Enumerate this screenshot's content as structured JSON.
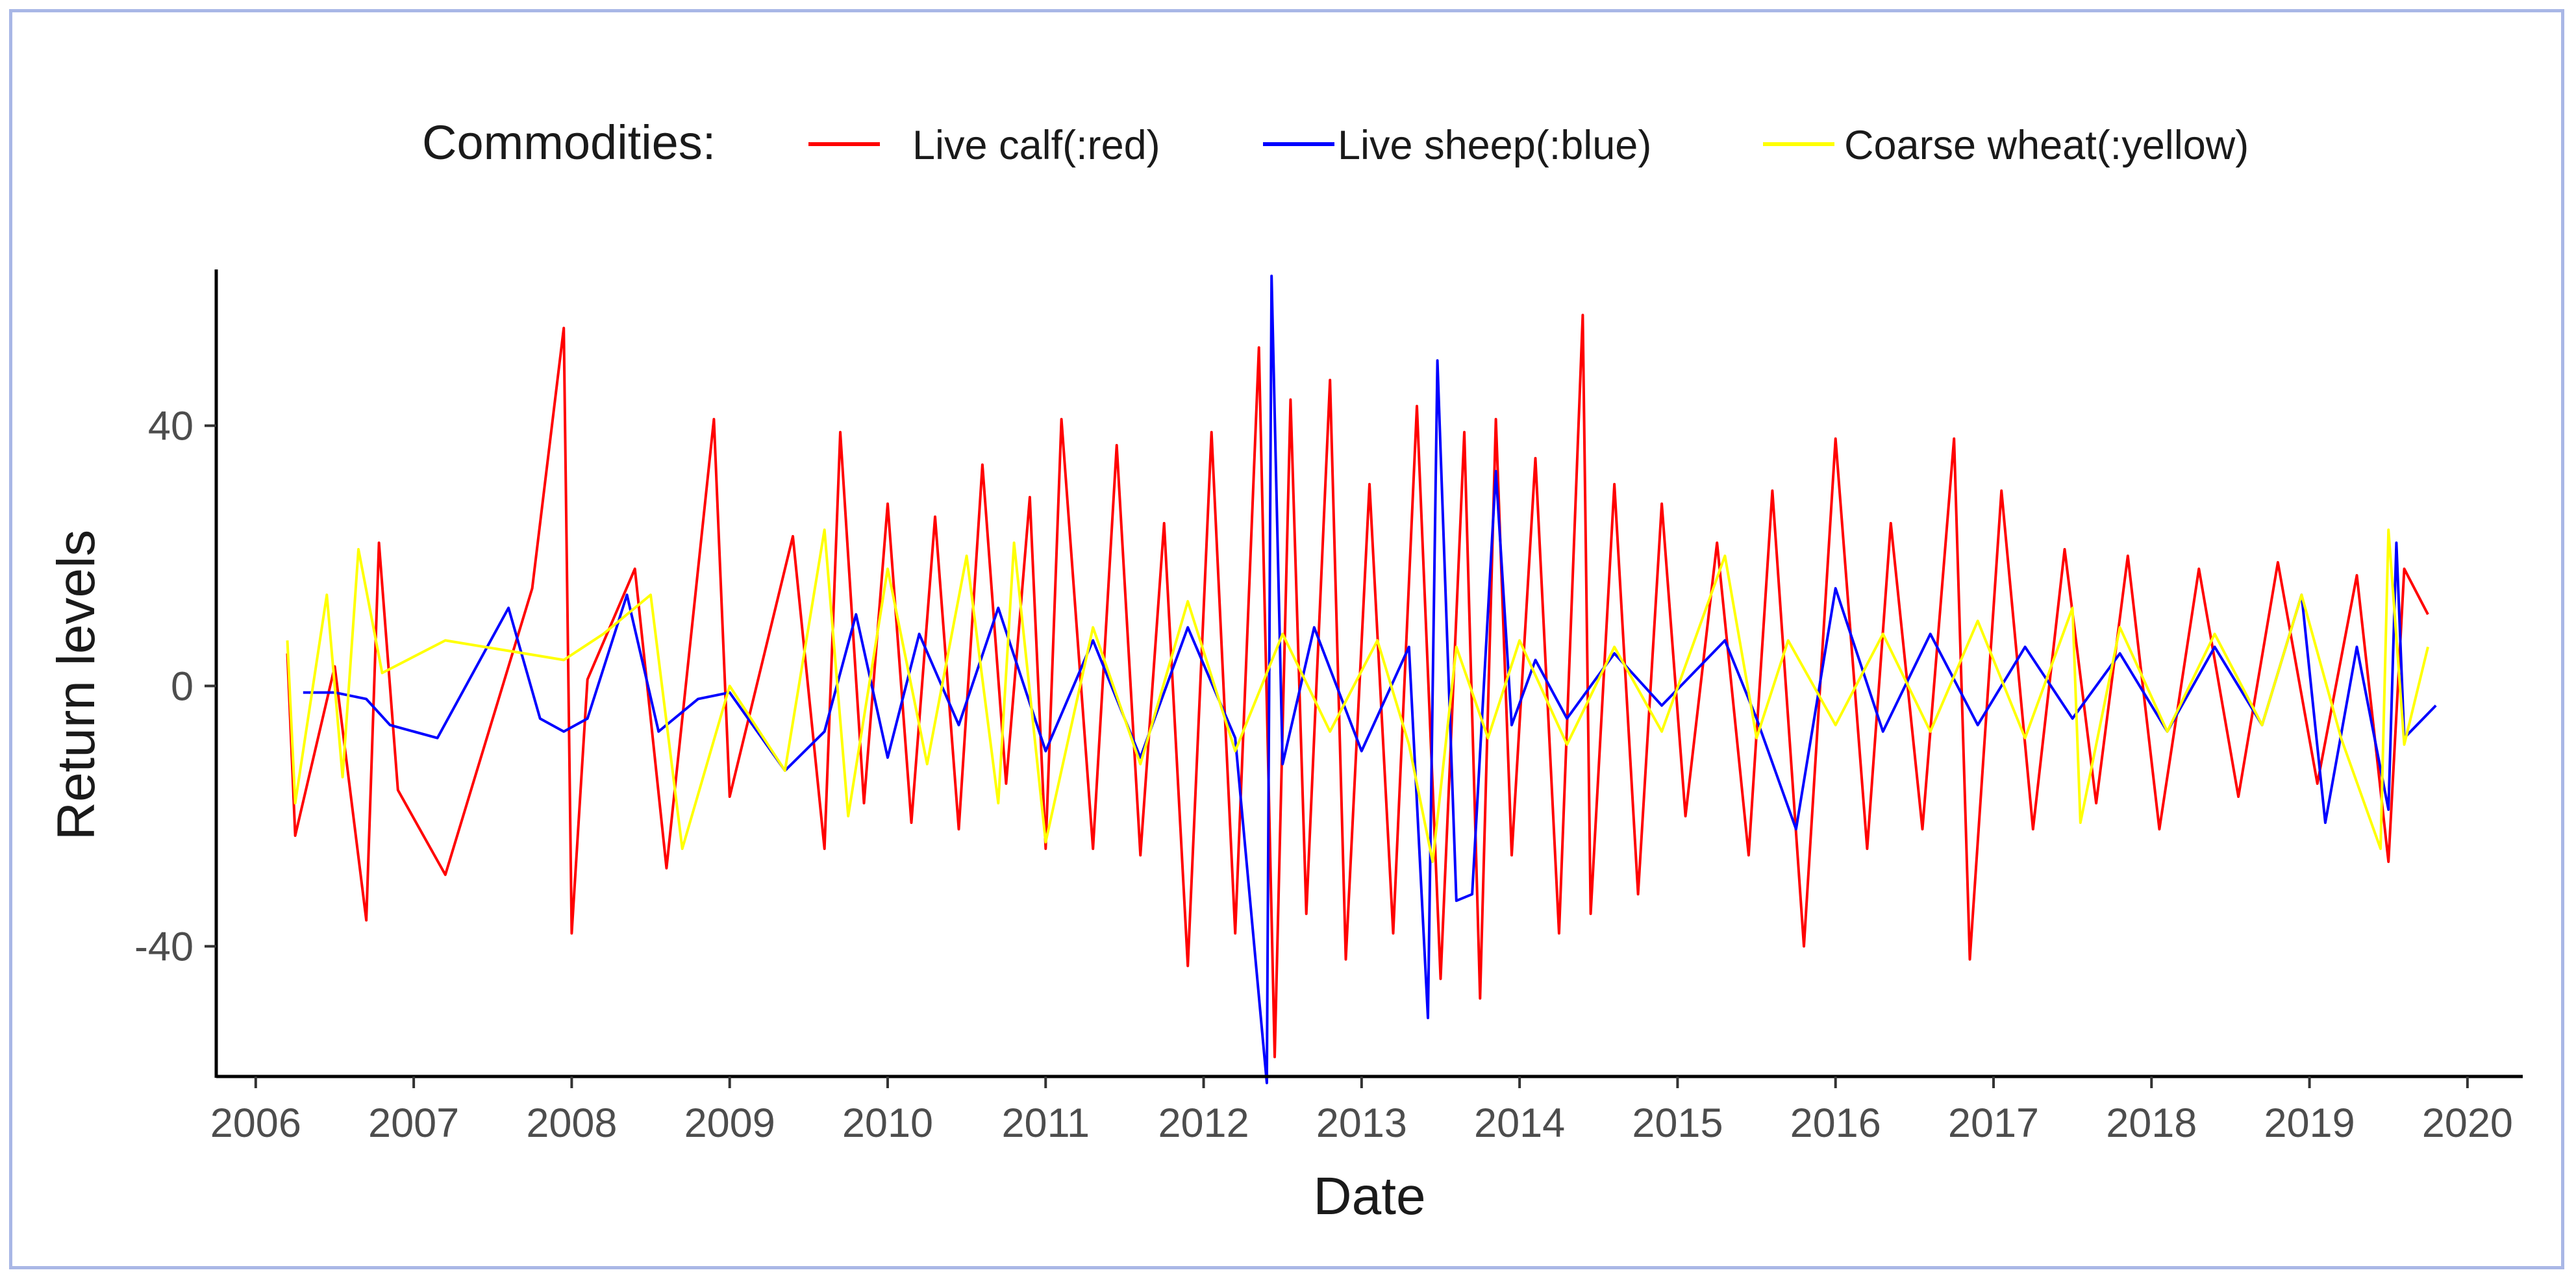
{
  "chart_data": {
    "type": "line",
    "title": "",
    "xlabel": "Date",
    "ylabel": "Return levels",
    "xlim": [
      2005.75,
      2020.35
    ],
    "ylim": [
      -60,
      64
    ],
    "x_ticks": [
      2006,
      2007,
      2008,
      2009,
      2010,
      2011,
      2012,
      2013,
      2014,
      2015,
      2016,
      2017,
      2018,
      2019,
      2020
    ],
    "y_ticks": [
      -40,
      0,
      40
    ],
    "legend": {
      "title": "Commodities:",
      "position": "top",
      "entries": [
        "Live calf(:red)",
        "Live sheep(:blue)",
        "Coarse wheat(:yellow)"
      ]
    },
    "series": [
      {
        "name": "Live calf(:red)",
        "color": "#ff0000",
        "x": [
          2006.2,
          2006.25,
          2006.5,
          2006.7,
          2006.78,
          2006.9,
          2007.2,
          2007.75,
          2007.95,
          2008.0,
          2008.1,
          2008.4,
          2008.6,
          2008.9,
          2009.0,
          2009.4,
          2009.6,
          2009.7,
          2009.85,
          2010.0,
          2010.15,
          2010.3,
          2010.45,
          2010.6,
          2010.75,
          2010.9,
          2011.0,
          2011.1,
          2011.3,
          2011.45,
          2011.6,
          2011.75,
          2011.9,
          2012.05,
          2012.2,
          2012.35,
          2012.45,
          2012.55,
          2012.65,
          2012.8,
          2012.9,
          2013.05,
          2013.2,
          2013.35,
          2013.5,
          2013.65,
          2013.75,
          2013.85,
          2013.95,
          2014.1,
          2014.25,
          2014.4,
          2014.45,
          2014.6,
          2014.75,
          2014.9,
          2015.05,
          2015.25,
          2015.45,
          2015.6,
          2015.8,
          2016.0,
          2016.2,
          2016.35,
          2016.55,
          2016.75,
          2016.85,
          2017.05,
          2017.25,
          2017.45,
          2017.65,
          2017.85,
          2018.05,
          2018.3,
          2018.55,
          2018.8,
          2019.05,
          2019.3,
          2019.5,
          2019.6,
          2019.75
        ],
        "values": [
          5,
          -23,
          3,
          -36,
          22,
          -16,
          -29,
          15,
          55,
          -38,
          1,
          18,
          -28,
          41,
          -17,
          23,
          -25,
          39,
          -18,
          28,
          -21,
          26,
          -22,
          34,
          -15,
          29,
          -25,
          41,
          -25,
          37,
          -26,
          25,
          -43,
          39,
          -38,
          52,
          -57,
          44,
          -35,
          47,
          -42,
          31,
          -38,
          43,
          -45,
          39,
          -48,
          41,
          -26,
          35,
          -38,
          57,
          -35,
          31,
          -32,
          28,
          -20,
          22,
          -26,
          30,
          -40,
          38,
          -25,
          25,
          -22,
          38,
          -42,
          30,
          -22,
          21,
          -18,
          20,
          -22,
          18,
          -17,
          19,
          -15,
          17,
          -27,
          18,
          11
        ]
      },
      {
        "name": "Live sheep(:blue)",
        "color": "#0000ff",
        "x": [
          2006.3,
          2006.5,
          2006.7,
          2006.85,
          2007.15,
          2007.6,
          2007.8,
          2007.95,
          2008.1,
          2008.35,
          2008.55,
          2008.8,
          2009.0,
          2009.35,
          2009.6,
          2009.8,
          2010.0,
          2010.2,
          2010.45,
          2010.7,
          2011.0,
          2011.3,
          2011.6,
          2011.9,
          2012.2,
          2012.4,
          2012.43,
          2012.5,
          2012.7,
          2013.0,
          2013.3,
          2013.42,
          2013.48,
          2013.6,
          2013.7,
          2013.85,
          2013.95,
          2014.1,
          2014.3,
          2014.6,
          2014.9,
          2015.3,
          2015.5,
          2015.75,
          2016.0,
          2016.3,
          2016.6,
          2016.9,
          2017.2,
          2017.5,
          2017.8,
          2018.1,
          2018.4,
          2018.7,
          2018.95,
          2019.1,
          2019.3,
          2019.5,
          2019.55,
          2019.6,
          2019.8
        ],
        "values": [
          -1,
          -1,
          -2,
          -6,
          -8,
          12,
          -5,
          -7,
          -5,
          14,
          -7,
          -2,
          -1,
          -13,
          -7,
          11,
          -11,
          8,
          -6,
          12,
          -10,
          7,
          -11,
          9,
          -8,
          -61,
          63,
          -12,
          9,
          -10,
          6,
          -51,
          50,
          -33,
          -32,
          33,
          -6,
          4,
          -5,
          5,
          -3,
          7,
          -5,
          -22,
          15,
          -7,
          8,
          -6,
          6,
          -5,
          5,
          -7,
          6,
          -6,
          14,
          -21,
          6,
          -19,
          22,
          -8,
          -3
        ]
      },
      {
        "name": "Coarse wheat(:yellow)",
        "color": "#ffff00",
        "x": [
          2006.2,
          2006.25,
          2006.45,
          2006.55,
          2006.65,
          2006.8,
          2007.2,
          2007.7,
          2007.95,
          2008.2,
          2008.5,
          2008.7,
          2009.0,
          2009.35,
          2009.6,
          2009.75,
          2010.0,
          2010.25,
          2010.5,
          2010.7,
          2010.8,
          2011.0,
          2011.3,
          2011.6,
          2011.9,
          2012.2,
          2012.5,
          2012.8,
          2013.1,
          2013.3,
          2013.45,
          2013.6,
          2013.8,
          2014.0,
          2014.3,
          2014.6,
          2014.9,
          2015.3,
          2015.5,
          2015.7,
          2016.0,
          2016.3,
          2016.6,
          2016.9,
          2017.2,
          2017.5,
          2017.55,
          2017.8,
          2018.1,
          2018.4,
          2018.7,
          2018.95,
          2019.2,
          2019.45,
          2019.5,
          2019.6,
          2019.75
        ],
        "values": [
          7,
          -18,
          14,
          -14,
          21,
          2,
          7,
          5,
          4,
          8,
          14,
          -25,
          0,
          -13,
          24,
          -20,
          18,
          -12,
          20,
          -18,
          22,
          -24,
          9,
          -12,
          13,
          -10,
          8,
          -7,
          7,
          -9,
          -27,
          6,
          -8,
          7,
          -9,
          6,
          -7,
          20,
          -8,
          7,
          -6,
          8,
          -7,
          10,
          -8,
          12,
          -21,
          9,
          -7,
          8,
          -6,
          14,
          -8,
          -25,
          24,
          -9,
          6
        ]
      }
    ]
  }
}
